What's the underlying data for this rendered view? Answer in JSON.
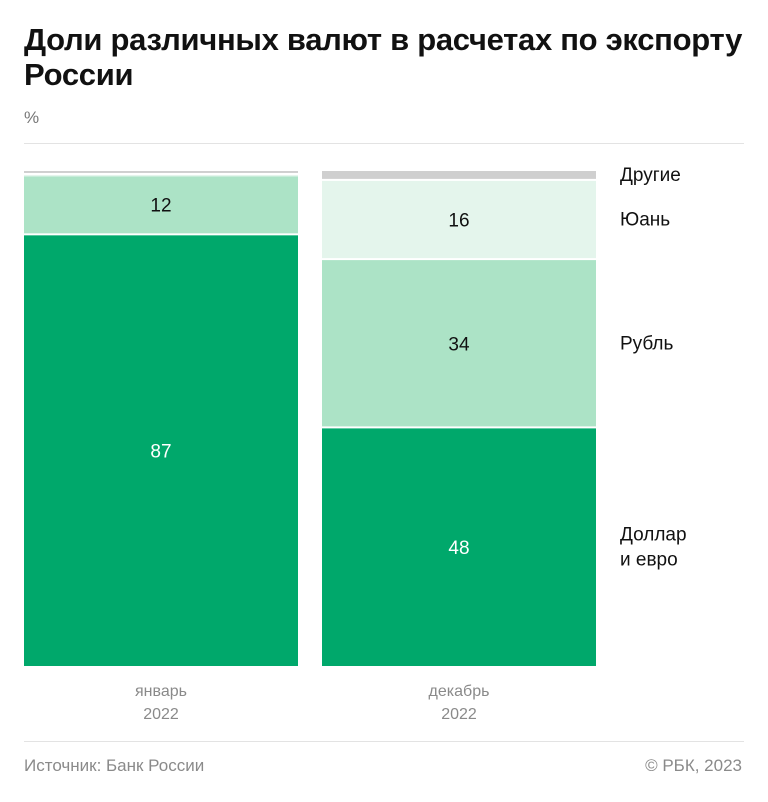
{
  "title": "Доли различных валют в расчетах по экспорту России",
  "unit": "%",
  "footer": {
    "source": "Источник: Банк России",
    "copyright": "© РБК, 2023"
  },
  "colors": {
    "Доллар и евро": "#00a86b",
    "Рубль": "#ace3c6",
    "Юань": "#e4f5ec",
    "Другие": "#cfcfcf"
  },
  "chart_data": {
    "type": "bar",
    "stacked": true,
    "normalized_percent": true,
    "categories": [
      [
        "январь",
        "2022"
      ],
      [
        "декабрь",
        "2022"
      ]
    ],
    "series": [
      {
        "name": "Доллар и евро",
        "legend_lines": [
          "Доллар",
          "и евро"
        ],
        "values": [
          87,
          48
        ],
        "labels": [
          "87",
          "48"
        ]
      },
      {
        "name": "Рубль",
        "legend_lines": [
          "Рубль"
        ],
        "values": [
          12,
          34
        ],
        "labels": [
          "12",
          "34"
        ]
      },
      {
        "name": "Юань",
        "legend_lines": [
          "Юань"
        ],
        "values": [
          0.2,
          16
        ],
        "labels": [
          "",
          "16"
        ]
      },
      {
        "name": "Другие",
        "legend_lines": [
          "Другие"
        ],
        "values": [
          0.8,
          2
        ],
        "labels": [
          "",
          ""
        ]
      }
    ],
    "legend_position": "right",
    "ylim": [
      0,
      100
    ]
  }
}
